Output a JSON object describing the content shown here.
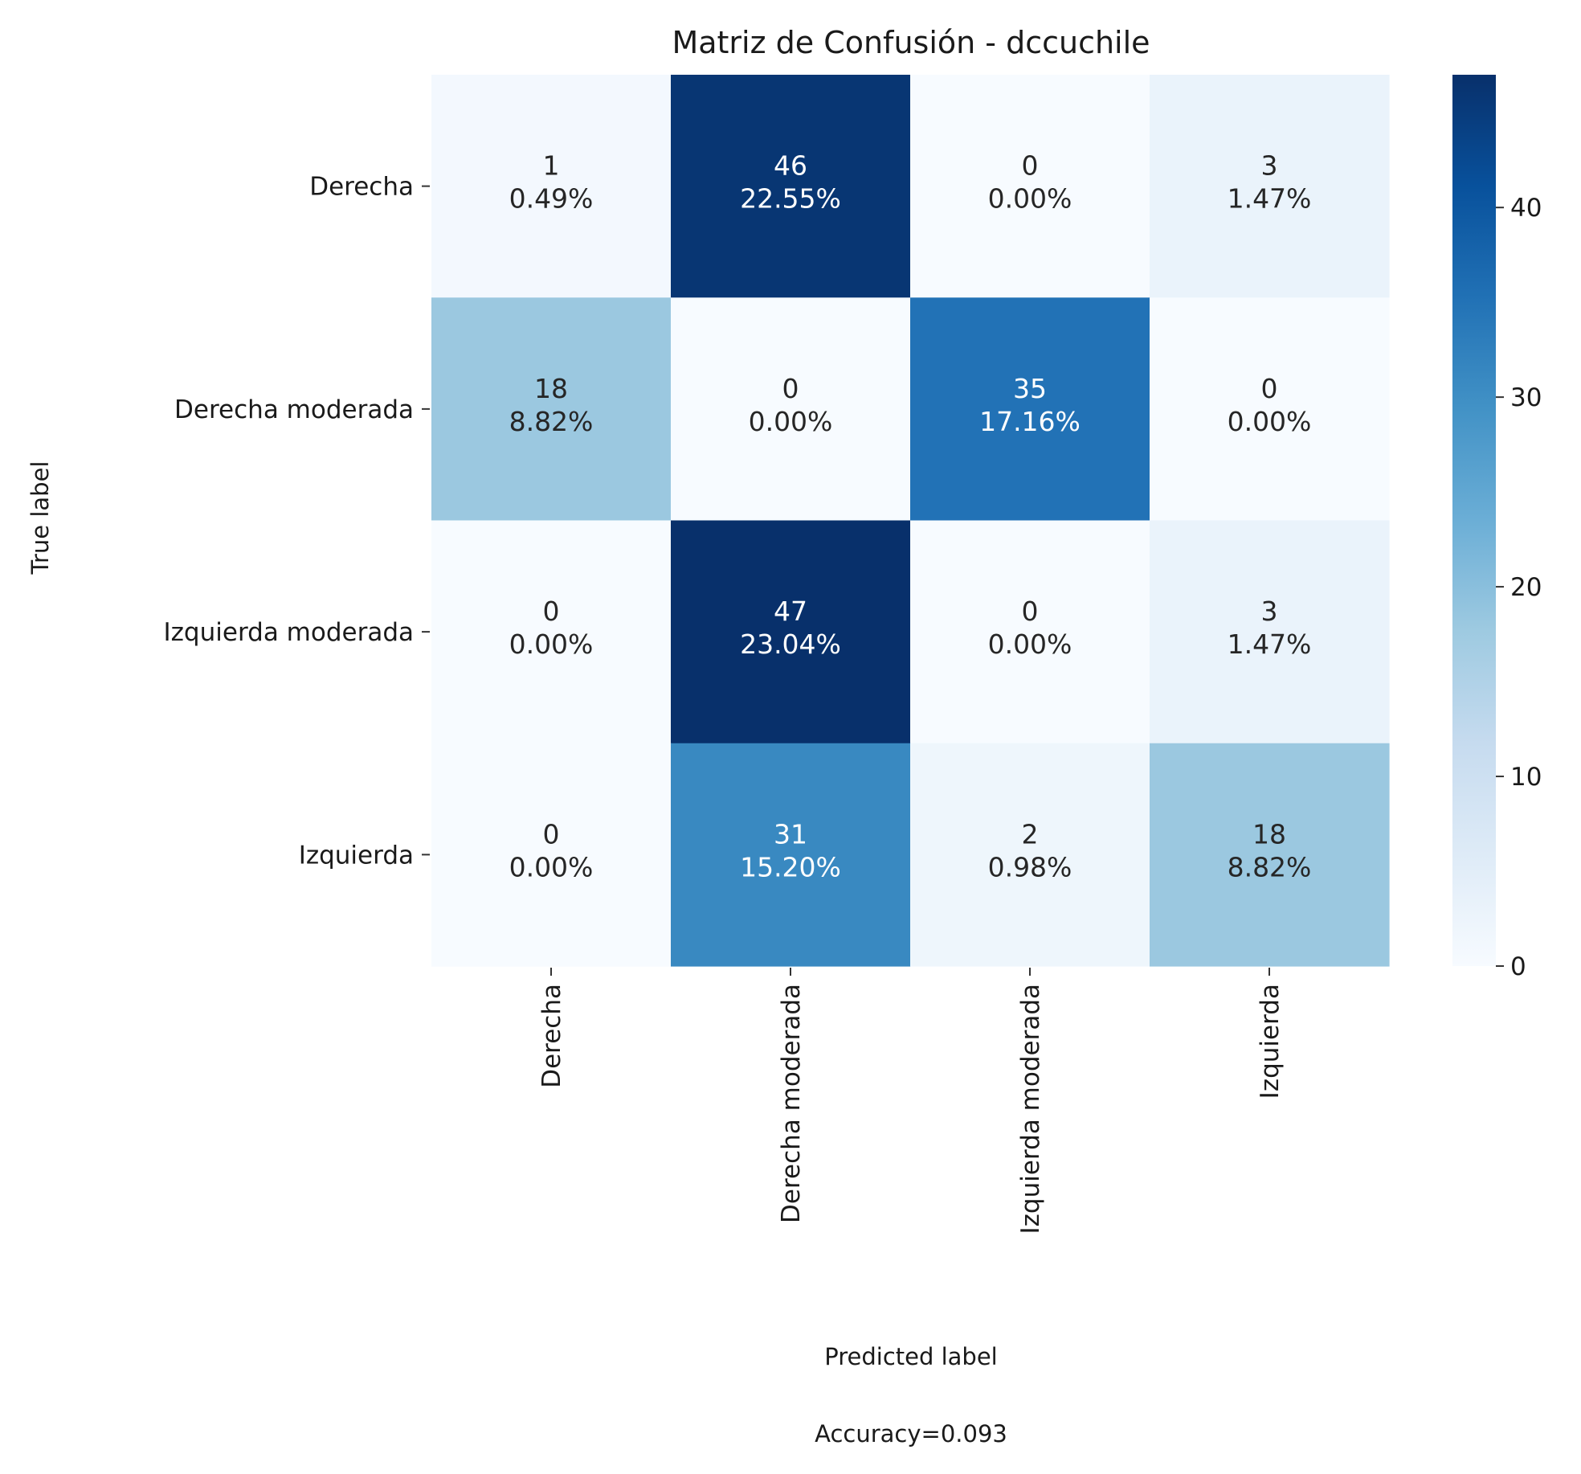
{
  "chart_data": {
    "type": "heatmap",
    "title": "Matriz de Confusión - dccuchile",
    "xlabel": "Predicted label",
    "ylabel": "True label",
    "footer": "Accuracy=0.093",
    "x_categories": [
      "Derecha",
      "Derecha moderada",
      "Izquierda moderada",
      "Izquierda"
    ],
    "y_categories": [
      "Derecha",
      "Derecha moderada",
      "Izquierda moderada",
      "Izquierda"
    ],
    "values": [
      [
        1,
        46,
        0,
        3
      ],
      [
        18,
        0,
        35,
        0
      ],
      [
        0,
        47,
        0,
        3
      ],
      [
        0,
        31,
        2,
        18
      ]
    ],
    "percent_labels": [
      [
        "0.49%",
        "22.55%",
        "0.00%",
        "1.47%"
      ],
      [
        "8.82%",
        "0.00%",
        "17.16%",
        "0.00%"
      ],
      [
        "0.00%",
        "23.04%",
        "0.00%",
        "1.47%"
      ],
      [
        "0.00%",
        "15.20%",
        "0.98%",
        "8.82%"
      ]
    ],
    "colormap": "Blues",
    "colorbar": {
      "range": [
        0,
        47
      ],
      "ticks": [
        0,
        10,
        20,
        30,
        40
      ],
      "tick_labels": [
        "0",
        "10",
        "20",
        "30",
        "40"
      ]
    }
  }
}
